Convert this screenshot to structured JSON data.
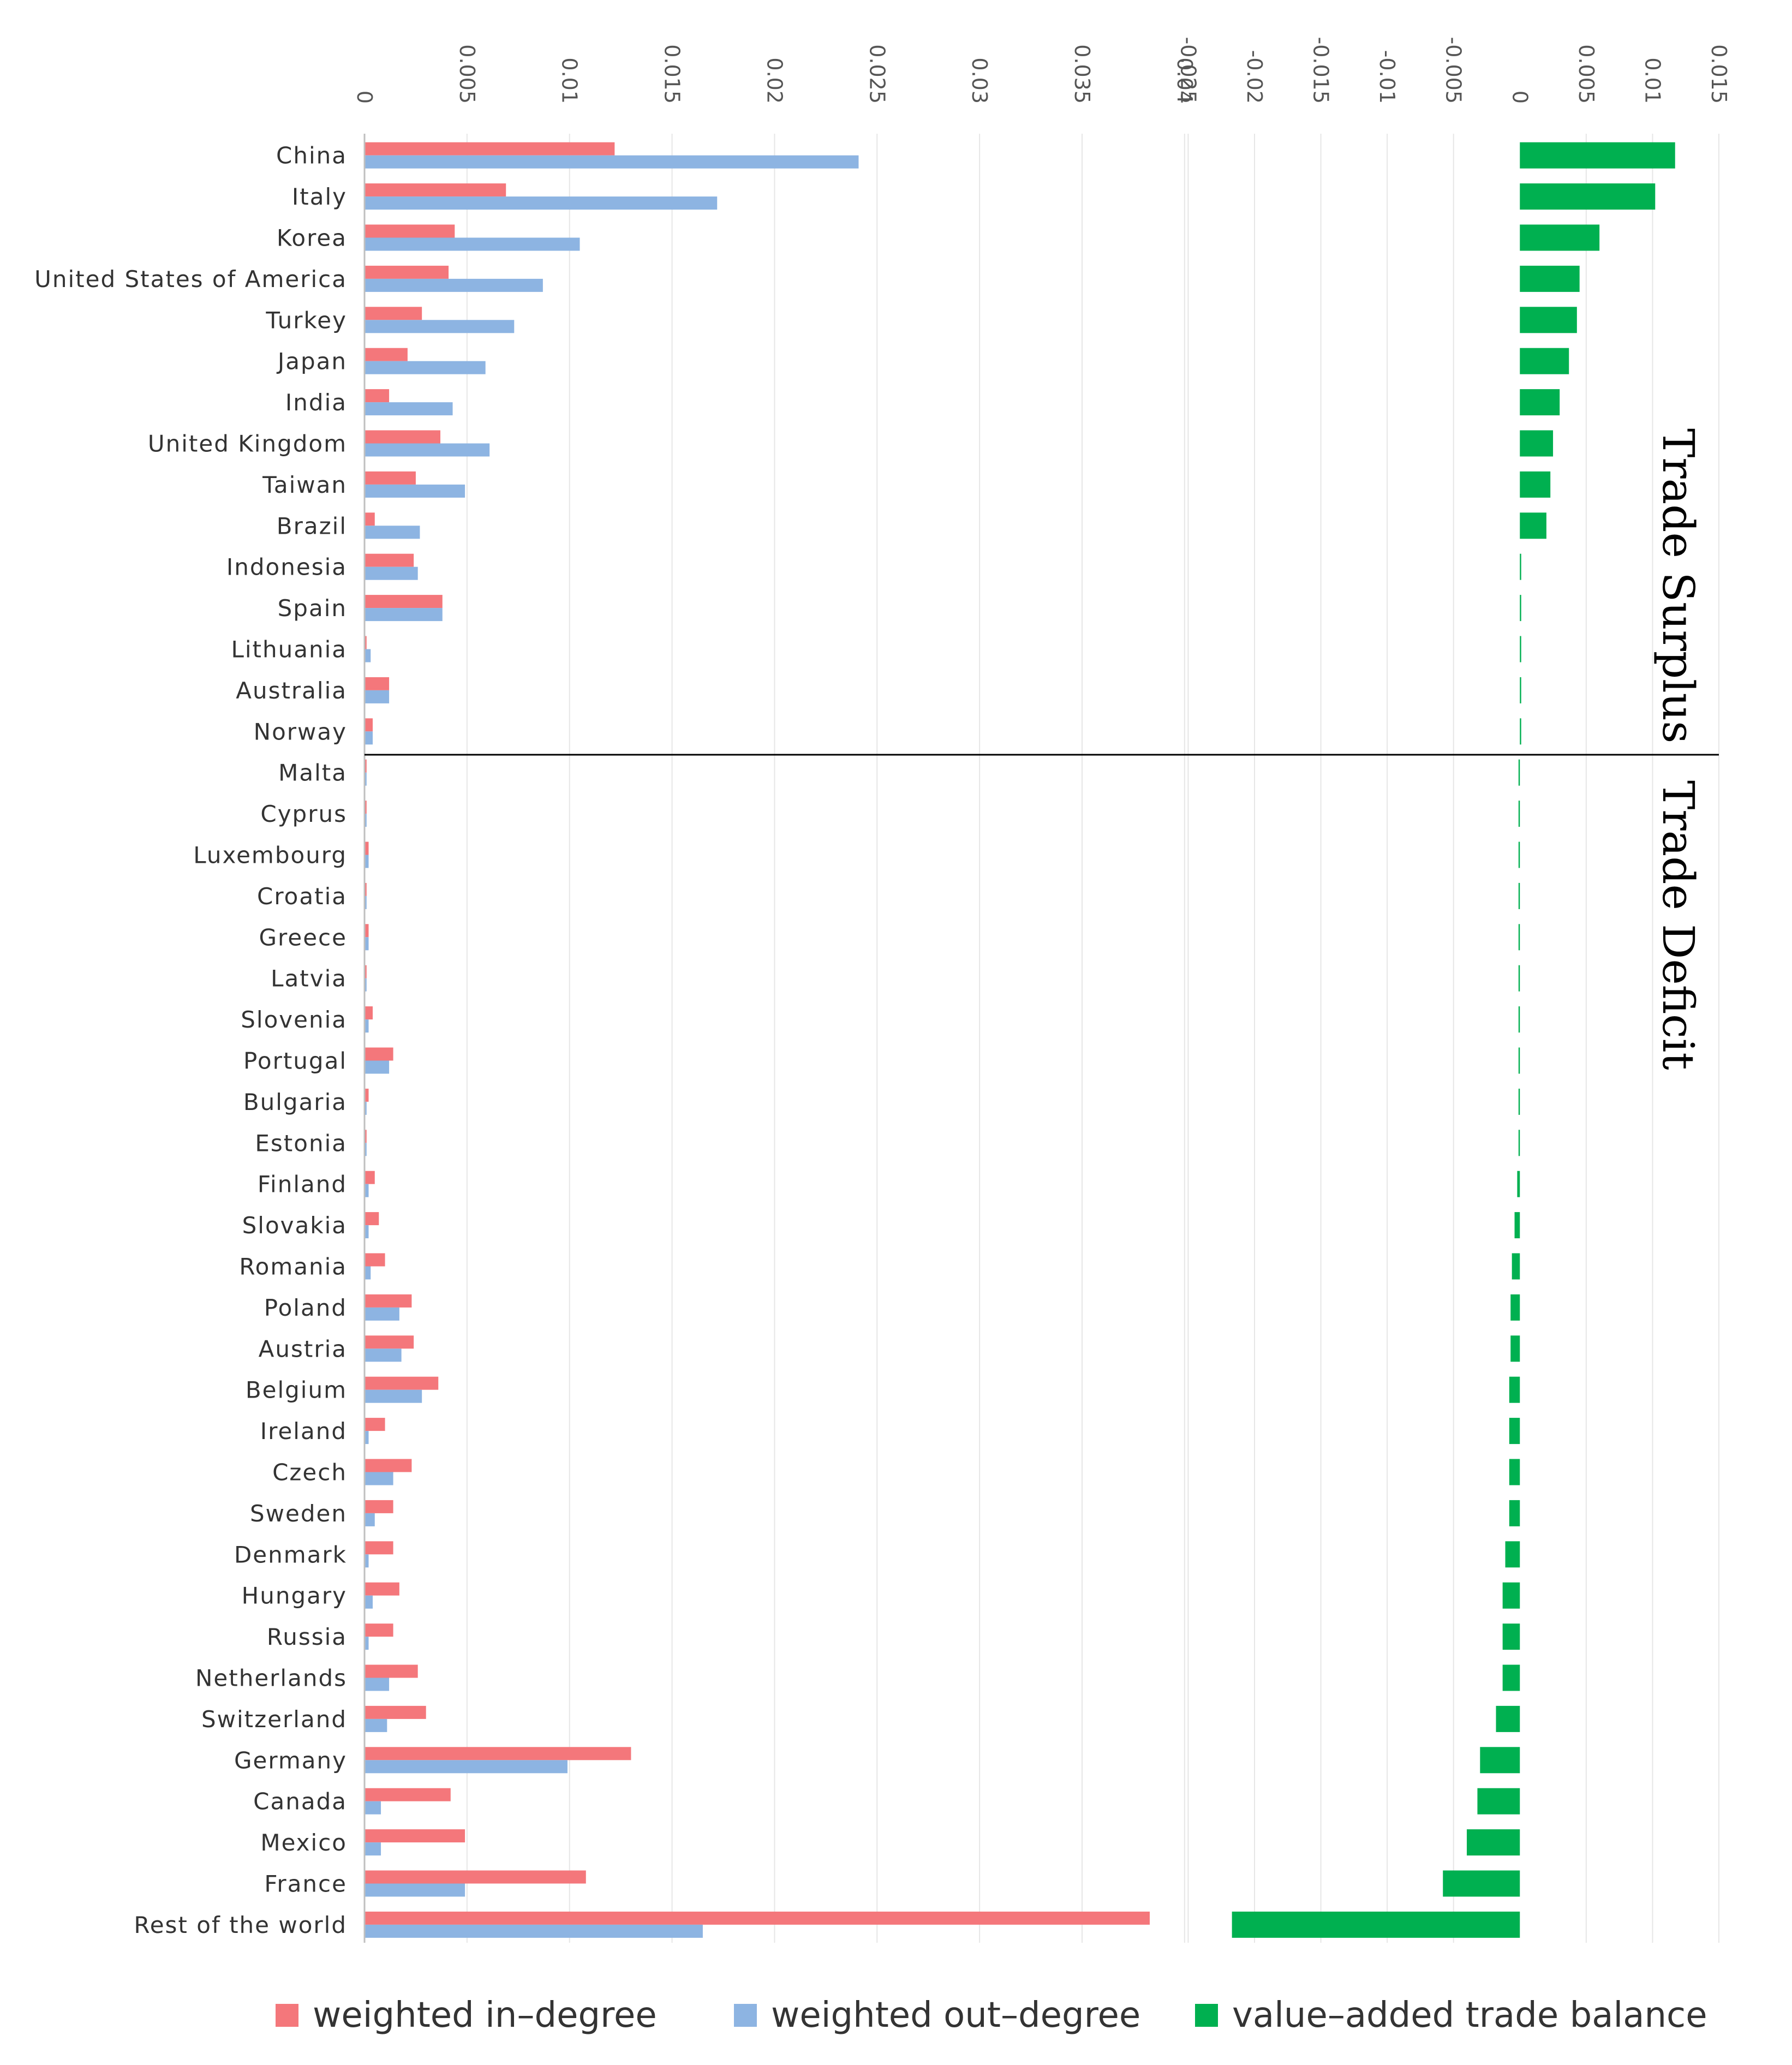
{
  "chart_data": {
    "type": "bar",
    "orientation": "horizontal",
    "categories": [
      "China",
      "Italy",
      "Korea",
      "United States of America",
      "Turkey",
      "Japan",
      "India",
      "United Kingdom",
      "Taiwan",
      "Brazil",
      "Indonesia",
      "Spain",
      "Lithuania",
      "Australia",
      "Norway",
      "Malta",
      "Cyprus",
      "Luxembourg",
      "Croatia",
      "Greece",
      "Latvia",
      "Slovenia",
      "Portugal",
      "Bulgaria",
      "Estonia",
      "Finland",
      "Slovakia",
      "Romania",
      "Poland",
      "Austria",
      "Belgium",
      "Ireland",
      "Czech",
      "Sweden",
      "Denmark",
      "Hungary",
      "Russia",
      "Netherlands",
      "Switzerland",
      "Germany",
      "Canada",
      "Mexico",
      "France",
      "Rest of the world"
    ],
    "panels": [
      {
        "x_ticks": [
          "0",
          "0.005",
          "0.01",
          "0.015",
          "0.02",
          "0.025",
          "0.03",
          "0.035",
          "0.04"
        ],
        "xlim": [
          0,
          0.042
        ],
        "series": [
          {
            "name": "weighted in–degree",
            "color": "#f4777b",
            "values": [
              0.0122,
              0.0069,
              0.0044,
              0.0041,
              0.0028,
              0.0021,
              0.0012,
              0.0037,
              0.0025,
              0.0005,
              0.0024,
              0.0038,
              0.0001,
              0.0012,
              0.0004,
              0.0001,
              0.0001,
              0.0002,
              0.0001,
              0.0002,
              0.0001,
              0.0004,
              0.0014,
              0.0002,
              0.0001,
              0.0005,
              0.0007,
              0.001,
              0.0023,
              0.0024,
              0.0036,
              0.001,
              0.0023,
              0.0014,
              0.0014,
              0.0017,
              0.0014,
              0.0026,
              0.003,
              0.013,
              0.0042,
              0.0049,
              0.0108,
              0.0383
            ]
          },
          {
            "name": "weighted out–degree",
            "color": "#8db4e2",
            "values": [
              0.0241,
              0.0172,
              0.0105,
              0.0087,
              0.0073,
              0.0059,
              0.0043,
              0.0061,
              0.0049,
              0.0027,
              0.0026,
              0.0038,
              0.0003,
              0.0012,
              0.0004,
              0.0001,
              0.0001,
              0.0002,
              0.0001,
              0.0002,
              0.0001,
              0.0002,
              0.0012,
              0.0001,
              0.0001,
              0.0002,
              0.0002,
              0.0003,
              0.0017,
              0.0018,
              0.0028,
              0.0002,
              0.0014,
              0.0005,
              0.0002,
              0.0004,
              0.0002,
              0.0012,
              0.0011,
              0.0099,
              0.0008,
              0.0008,
              0.0049,
              0.0165
            ]
          }
        ]
      },
      {
        "x_ticks": [
          "-0.025",
          "-0.02",
          "-0.015",
          "-0.01",
          "-0.005",
          "0",
          "0.005",
          "0.01",
          "0.015"
        ],
        "xlim": [
          -0.0295,
          0.015
        ],
        "series": [
          {
            "name": "value–added trade balance",
            "color": "#00b050",
            "values": [
              0.0117,
              0.0102,
              0.006,
              0.0045,
              0.0043,
              0.0037,
              0.003,
              0.0025,
              0.0023,
              0.002,
              0.0001,
              0.0001,
              0.0001,
              0.0001,
              0.0001,
              -0.0001,
              -0.0001,
              -0.0001,
              -0.0001,
              -0.0001,
              -0.0001,
              -0.0001,
              -0.0001,
              -0.0001,
              -0.0001,
              -0.0002,
              -0.0004,
              -0.0006,
              -0.0007,
              -0.0007,
              -0.0008,
              -0.0008,
              -0.0008,
              -0.0008,
              -0.0011,
              -0.0013,
              -0.0013,
              -0.0013,
              -0.0018,
              -0.003,
              -0.0032,
              -0.004,
              -0.0058,
              -0.0217
            ]
          }
        ]
      }
    ],
    "annotations": [
      "Trade Surplus",
      "Trade Deficit"
    ],
    "legend": {
      "placement": "bottom",
      "items": [
        {
          "name": "weighted in–degree",
          "color": "#f4777b"
        },
        {
          "name": "weighted out–degree",
          "color": "#8db4e2"
        },
        {
          "name": "value–added trade balance",
          "color": "#00b050"
        }
      ]
    },
    "grid": true,
    "xlabel": "",
    "ylabel": ""
  }
}
